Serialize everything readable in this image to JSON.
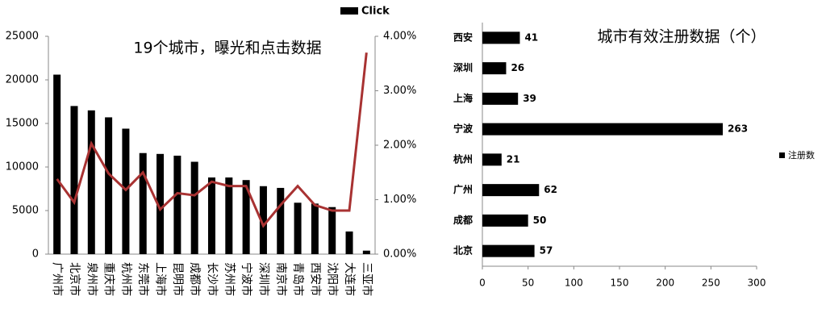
{
  "chart_data": [
    {
      "type": "bar",
      "title": "19个城市，曝光和点击数据",
      "categories": [
        "广州市",
        "北京市",
        "泉州市",
        "重庆市",
        "杭州市",
        "东莞市",
        "上海市",
        "昆明市",
        "成都市",
        "长沙市",
        "苏州市",
        "宁波市",
        "深圳市",
        "南京市",
        "青岛市",
        "西安市",
        "沈阳市",
        "大连市",
        "三亚市"
      ],
      "series": [
        {
          "name": "Click",
          "color": "#000000",
          "mark": "bar",
          "values": [
            20600,
            17000,
            16500,
            15700,
            14400,
            11600,
            11500,
            11300,
            10600,
            8800,
            8800,
            8500,
            7800,
            7600,
            5900,
            5800,
            5400,
            2600,
            400
          ]
        },
        {
          "color": "#a83232",
          "mark": "line",
          "axis": "y2",
          "values": [
            1.38,
            0.95,
            2.03,
            1.48,
            1.18,
            1.5,
            0.82,
            1.12,
            1.08,
            1.33,
            1.25,
            1.25,
            0.52,
            0.9,
            1.25,
            0.9,
            0.8,
            0.8,
            3.7
          ]
        }
      ],
      "ylim": [
        0,
        25000
      ],
      "yticks": [
        0,
        5000,
        10000,
        15000,
        20000,
        25000
      ],
      "y2lim": [
        0,
        4
      ],
      "y2ticks": [
        {
          "value": 0,
          "label": "0.00%"
        },
        {
          "value": 1,
          "label": "1.00%"
        },
        {
          "value": 2,
          "label": "2.00%"
        },
        {
          "value": 3,
          "label": "3.00%"
        },
        {
          "value": 4,
          "label": "4.00%"
        }
      ]
    },
    {
      "type": "barh",
      "title": "城市有效注册数据（个）",
      "categories": [
        "西安",
        "深圳",
        "上海",
        "宁波",
        "杭州",
        "广州",
        "成都",
        "北京"
      ],
      "series": [
        {
          "name": "注册数",
          "color": "#000000",
          "values": [
            41,
            26,
            39,
            263,
            21,
            62,
            50,
            57
          ]
        }
      ],
      "xlim": [
        0,
        300
      ],
      "xticks": [
        0,
        50,
        100,
        150,
        200,
        250,
        300
      ]
    }
  ]
}
